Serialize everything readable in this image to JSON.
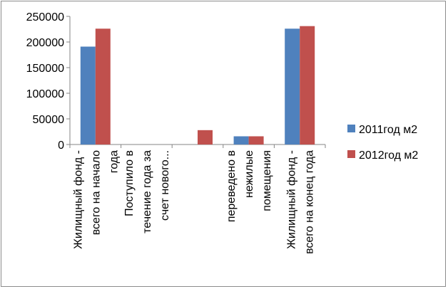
{
  "chart_data": {
    "type": "bar",
    "title": "",
    "xlabel": "",
    "ylabel": "",
    "ylim": [
      0,
      250000
    ],
    "yticks": [
      0,
      50000,
      100000,
      150000,
      200000,
      250000
    ],
    "ytick_labels": [
      "0",
      "50000",
      "100000",
      "150000",
      "200000",
      "250000"
    ],
    "grid": false,
    "legend_position": "right",
    "categories": [
      "Жилищный фонд - всего на начало года",
      "Поступило в течение года за счет нового...",
      "",
      "переведено в нежилые помещения",
      "Жилищный фонд - всего на конец года"
    ],
    "category_label_lines": [
      [
        "Жилищный фонд -",
        "всего на начало",
        "года"
      ],
      [
        "Поступило в",
        "течение года за",
        "счет нового..."
      ],
      [],
      [
        "переведено в",
        "нежилые",
        "помещения"
      ],
      [
        "Жилищный фонд -",
        "всего на конец года"
      ]
    ],
    "series": [
      {
        "name": "2011год м2",
        "color": "#4F81BD",
        "values": [
          191000,
          0,
          0,
          16000,
          226000
        ]
      },
      {
        "name": "2012год м2",
        "color": "#C0504D",
        "values": [
          226000,
          0,
          28000,
          16000,
          231000
        ]
      }
    ]
  }
}
